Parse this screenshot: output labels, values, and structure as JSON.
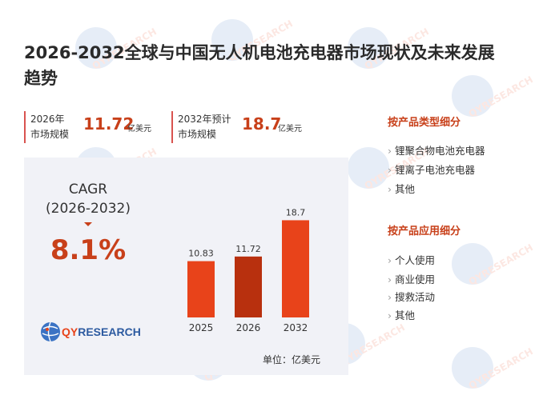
{
  "title": "2026-2032全球与中国无人机电池充电器市场现状及未来发展趋势",
  "stats": [
    {
      "label_line1": "2026年",
      "label_line2": "市场规模",
      "value": "11.72",
      "unit": "亿美元"
    },
    {
      "label_line1": "2032年预计",
      "label_line2": "市场规模",
      "value": "18.7",
      "unit": "亿美元"
    }
  ],
  "cagr": {
    "label": "CAGR",
    "period": "(2026-2032)",
    "value": "8.1%"
  },
  "logo": {
    "brand_part1": "QY",
    "brand_part2": "RESEARCH"
  },
  "watermark_text": "QYRESEARCH",
  "unit_note": "单位：亿美元",
  "chart_data": {
    "type": "bar",
    "categories": [
      "2025",
      "2026",
      "2032"
    ],
    "values": [
      10.83,
      11.72,
      18.7
    ],
    "value_labels": [
      "10.83",
      "11.72",
      "18.7"
    ],
    "ylim": [
      0,
      20
    ],
    "colors": [
      "#e8431a",
      "#b8300e",
      "#e8431a"
    ]
  },
  "sidebar": {
    "product_type": {
      "heading": "按产品类型细分",
      "items": [
        "锂聚合物电池充电器",
        "锂离子电池充电器",
        "其他"
      ]
    },
    "application": {
      "heading": "按产品应用细分",
      "items": [
        "个人使用",
        "商业使用",
        "搜救活动",
        "其他"
      ]
    }
  },
  "colors": {
    "accent": "#c8401a",
    "bar": "#e8431a",
    "bar_dark": "#b8300e",
    "panel_bg": "#f1f2f7"
  }
}
